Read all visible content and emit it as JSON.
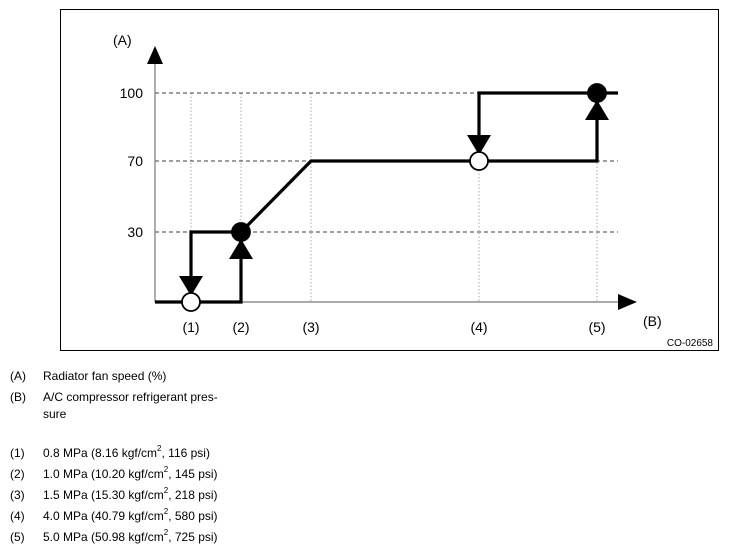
{
  "chart_data": {
    "type": "line",
    "ylabel": "(A)",
    "xlabel": "(B)",
    "figure_id": "CO-02658",
    "yticks": [
      "100",
      "70",
      "30"
    ],
    "ytick_values": [
      100,
      70,
      30
    ],
    "xtick_labels": [
      "(1)",
      "(2)",
      "(3)",
      "(4)",
      "(5)"
    ],
    "x_positions_mpa": [
      0.8,
      1.0,
      1.5,
      4.0,
      5.0
    ],
    "series": [
      {
        "segments": [
          [
            [
              "start",
              0
            ],
            [
              2,
              0
            ],
            [
              2,
              30
            ],
            [
              3,
              70
            ],
            [
              5,
              70
            ],
            [
              5,
              100
            ],
            [
              "end",
              100
            ]
          ],
          [
            [
              2,
              30
            ],
            [
              1,
              30
            ],
            [
              1,
              0
            ]
          ],
          [
            [
              5,
              100
            ],
            [
              4,
              100
            ],
            [
              4,
              70
            ]
          ]
        ]
      }
    ],
    "markers": [
      {
        "x": 1,
        "y": 0,
        "style": "open",
        "arrow": "down"
      },
      {
        "x": 2,
        "y": 30,
        "style": "filled",
        "arrow": "up"
      },
      {
        "x": 4,
        "y": 70,
        "style": "open",
        "arrow": "down"
      },
      {
        "x": 5,
        "y": 100,
        "style": "filled",
        "arrow": "up"
      }
    ],
    "colors": {
      "line": "#000000",
      "grid": "#000000"
    }
  },
  "legend": {
    "axes": [
      {
        "key": "(A)",
        "text": "Radiator fan speed (%)"
      },
      {
        "key": "(B)",
        "text": "A/C compressor refrigerant pres-",
        "text2": "sure"
      }
    ],
    "points": [
      {
        "key": "(1)",
        "pre": "0.8 MPa (8.16 kgf/cm",
        "sup": "2",
        "post": ", 116 psi)"
      },
      {
        "key": "(2)",
        "pre": "1.0 MPa (10.20 kgf/cm",
        "sup": "2",
        "post": ", 145 psi)"
      },
      {
        "key": "(3)",
        "pre": "1.5 MPa (15.30 kgf/cm",
        "sup": "2",
        "post": ", 218 psi)"
      },
      {
        "key": "(4)",
        "pre": "4.0 MPa (40.79 kgf/cm",
        "sup": "2",
        "post": ", 580 psi)"
      },
      {
        "key": "(5)",
        "pre": "5.0 MPa (50.98 kgf/cm",
        "sup": "2",
        "post": ", 725 psi)"
      }
    ]
  }
}
